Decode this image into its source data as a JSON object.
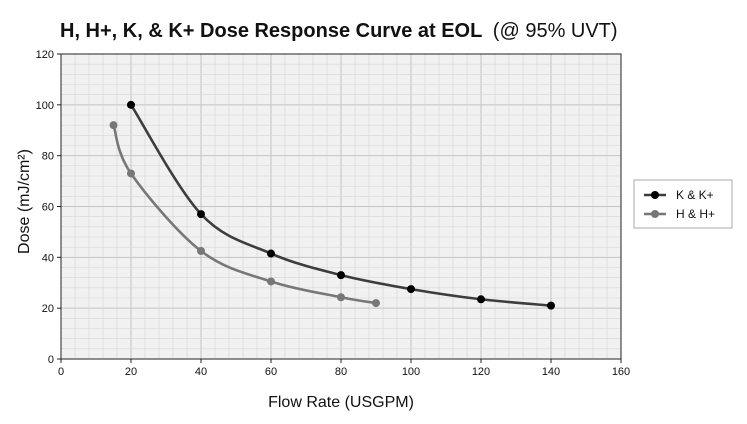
{
  "chart_data": {
    "type": "line",
    "title": "H, H+, K, & K+ Dose Response Curve at EOL",
    "subtitle": "(@ 95% UVT)",
    "xlabel": "Flow Rate (USGPM)",
    "ylabel": "Dose (mJ/cm²)",
    "xlim": [
      0,
      160
    ],
    "ylim": [
      0,
      120
    ],
    "xticks": [
      0,
      20,
      40,
      60,
      80,
      100,
      120,
      140,
      160
    ],
    "yticks": [
      0,
      20,
      40,
      60,
      80,
      100,
      120
    ],
    "grid": true,
    "legend_position": "right",
    "series": [
      {
        "name": "K & K+",
        "line_color": "#3d3d3d",
        "marker_color": "#000000",
        "x": [
          20,
          40,
          60,
          80,
          100,
          120,
          140
        ],
        "y": [
          100,
          57,
          41.5,
          33,
          27.5,
          23.5,
          21
        ]
      },
      {
        "name": "H & H+",
        "line_color": "#777777",
        "marker_color": "#777777",
        "x": [
          15,
          20,
          40,
          60,
          80,
          90
        ],
        "y": [
          92,
          73,
          42.5,
          30.5,
          24.3,
          22
        ]
      }
    ]
  },
  "colors": {
    "plot_background": "#f1f1f1",
    "grid_minor": "#d6d6d6",
    "grid_major": "#c4c4c4",
    "axis": "#222222"
  }
}
